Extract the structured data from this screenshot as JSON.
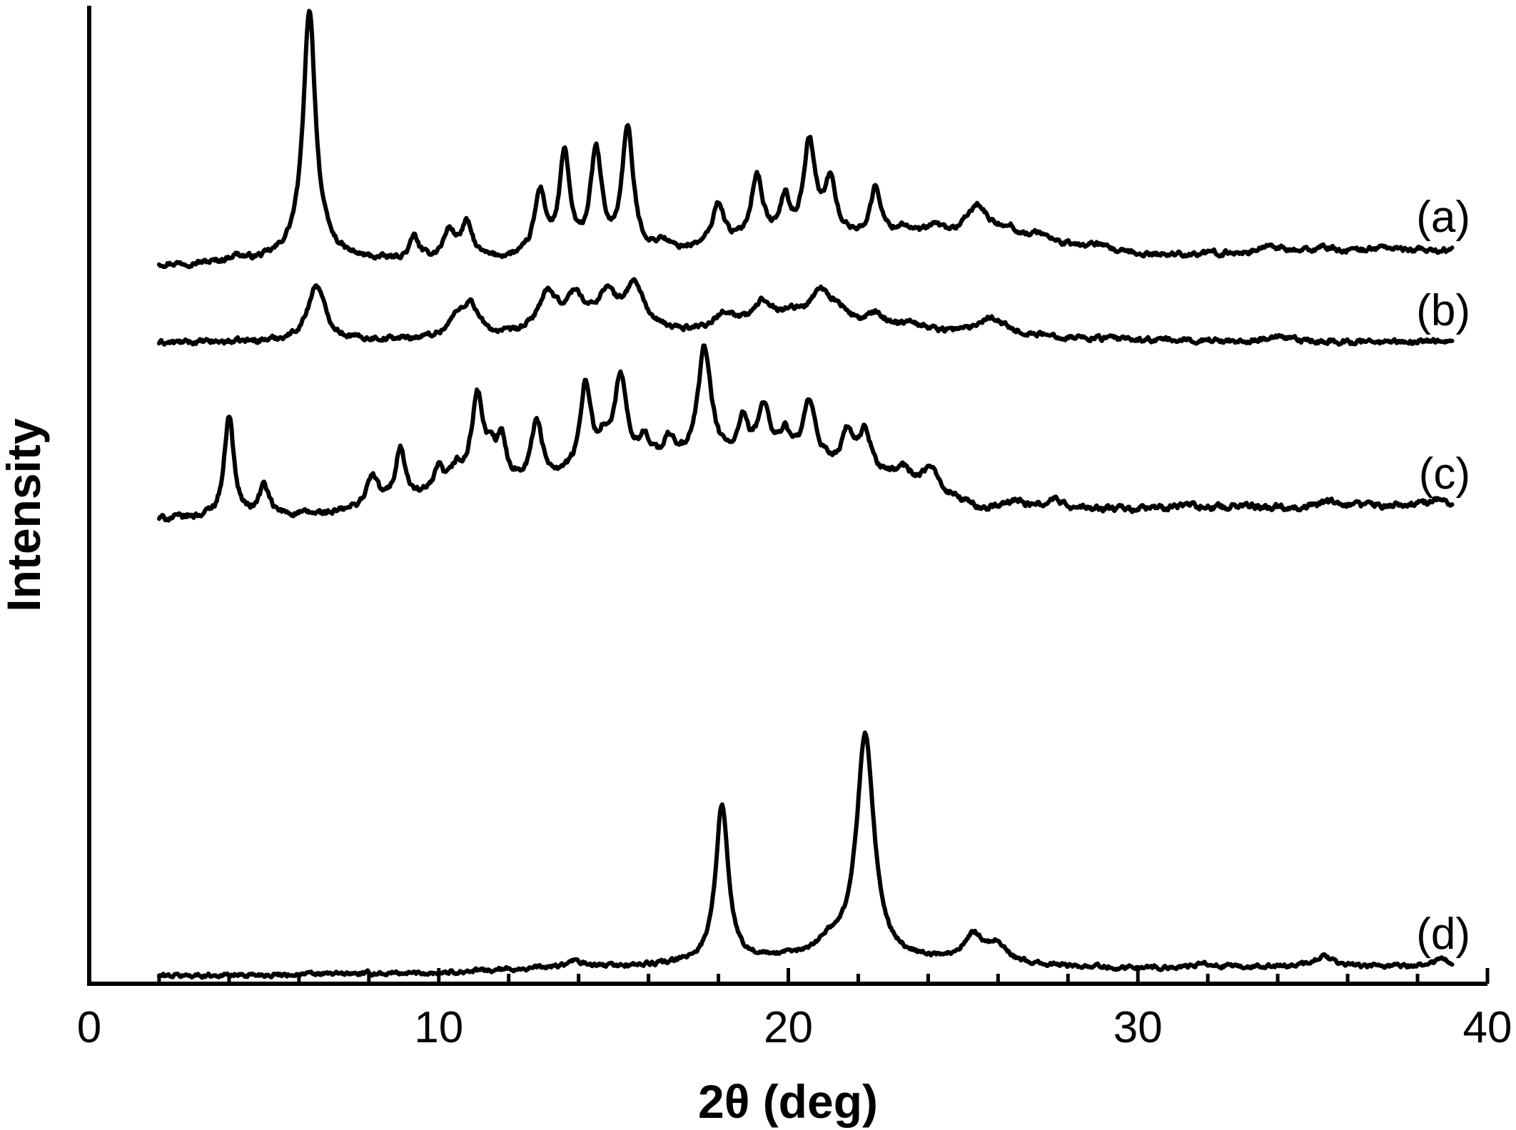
{
  "chart_data": {
    "type": "line",
    "title": "",
    "xlabel": "2θ (deg)",
    "ylabel": "Intensity",
    "xlim": [
      0,
      40
    ],
    "xticks": [
      0,
      10,
      20,
      30,
      40
    ],
    "xtick_labels": [
      "0",
      "10",
      "20",
      "30",
      "40"
    ],
    "xminor_step": 2,
    "ylim": [
      0,
      100
    ],
    "y_tick_labels_shown": false,
    "grid": false,
    "line_color": "#000000",
    "series": [
      {
        "name": "(a)",
        "x_range": [
          2,
          39
        ],
        "baseline": 73.5,
        "noise": 0.5,
        "drift": [
          [
            2,
            0
          ],
          [
            15,
            0.5
          ],
          [
            20,
            2.5
          ],
          [
            26,
            2.8
          ],
          [
            30,
            1
          ],
          [
            39,
            1.5
          ]
        ],
        "peaks": [
          [
            4.2,
            0.6,
            0.25
          ],
          [
            6.3,
            23.5,
            0.2
          ],
          [
            6.3,
            2.5,
            0.6
          ],
          [
            9.3,
            2.3,
            0.15
          ],
          [
            10.3,
            2.8,
            0.2
          ],
          [
            10.8,
            3.5,
            0.2
          ],
          [
            12.9,
            6.5,
            0.2
          ],
          [
            13.6,
            10.2,
            0.18
          ],
          [
            14.5,
            10.5,
            0.2
          ],
          [
            15.4,
            12.8,
            0.2
          ],
          [
            16.4,
            1.0,
            0.2
          ],
          [
            18.0,
            4.3,
            0.2
          ],
          [
            19.1,
            6.7,
            0.2
          ],
          [
            19.9,
            3.8,
            0.15
          ],
          [
            20.6,
            9.7,
            0.2
          ],
          [
            21.2,
            5.5,
            0.2
          ],
          [
            22.5,
            5.0,
            0.18
          ],
          [
            23.3,
            1.0,
            0.25
          ],
          [
            24.2,
            1.0,
            0.3
          ],
          [
            25.4,
            3.2,
            0.35
          ],
          [
            26.3,
            1.0,
            0.25
          ],
          [
            27.2,
            0.8,
            0.3
          ],
          [
            28.8,
            0.5,
            0.3
          ],
          [
            33.8,
            0.8,
            0.3
          ],
          [
            35.3,
            0.5,
            0.3
          ],
          [
            37,
            0.4,
            0.4
          ]
        ]
      },
      {
        "name": "(b)",
        "x_range": [
          2,
          39
        ],
        "baseline": 65.5,
        "noise": 0.5,
        "drift": [
          [
            2,
            0
          ],
          [
            15,
            0.5
          ],
          [
            20,
            1.6
          ],
          [
            26,
            0.8
          ],
          [
            30,
            0.3
          ],
          [
            39,
            0
          ]
        ],
        "peaks": [
          [
            6.5,
            5.7,
            0.3
          ],
          [
            10.5,
            1.5,
            0.3
          ],
          [
            10.9,
            3.2,
            0.3
          ],
          [
            13.1,
            4.0,
            0.35
          ],
          [
            13.9,
            3.6,
            0.35
          ],
          [
            14.8,
            3.8,
            0.35
          ],
          [
            15.6,
            4.8,
            0.35
          ],
          [
            18.2,
            1.6,
            0.35
          ],
          [
            19.3,
            2.5,
            0.35
          ],
          [
            20.1,
            1.0,
            0.3
          ],
          [
            20.9,
            3.3,
            0.35
          ],
          [
            21.4,
            1.5,
            0.35
          ],
          [
            22.5,
            1.3,
            0.35
          ],
          [
            23.5,
            0.8,
            0.4
          ],
          [
            25.8,
            1.8,
            0.45
          ],
          [
            34,
            0.4,
            0.4
          ],
          [
            38.3,
            0.3,
            0.3
          ]
        ]
      },
      {
        "name": "(c)",
        "x_range": [
          2,
          39
        ],
        "baseline": 47.5,
        "noise": 0.6,
        "drift": [
          [
            2,
            0
          ],
          [
            7,
            0.5
          ],
          [
            11,
            3
          ],
          [
            15,
            5
          ],
          [
            19,
            6
          ],
          [
            22,
            5
          ],
          [
            24,
            3
          ],
          [
            25.5,
            1
          ],
          [
            30,
            1
          ],
          [
            39,
            1.5
          ]
        ],
        "peaks": [
          [
            4.0,
            10.5,
            0.16
          ],
          [
            5.0,
            3.0,
            0.16
          ],
          [
            8.1,
            3.0,
            0.2
          ],
          [
            8.9,
            5.5,
            0.16
          ],
          [
            10.0,
            2.3,
            0.15
          ],
          [
            10.5,
            2.0,
            0.2
          ],
          [
            11.1,
            9.0,
            0.2
          ],
          [
            11.5,
            2.5,
            0.2
          ],
          [
            11.8,
            3.8,
            0.15
          ],
          [
            12.8,
            6.0,
            0.17
          ],
          [
            14.2,
            9.0,
            0.17
          ],
          [
            14.7,
            2.5,
            0.2
          ],
          [
            15.2,
            9.0,
            0.2
          ],
          [
            15.9,
            2.5,
            0.2
          ],
          [
            16.6,
            2.2,
            0.2
          ],
          [
            17.6,
            11.5,
            0.23
          ],
          [
            18.7,
            3.5,
            0.17
          ],
          [
            19.3,
            5.3,
            0.2
          ],
          [
            19.9,
            2.5,
            0.2
          ],
          [
            20.6,
            6.0,
            0.22
          ],
          [
            21.7,
            3.4,
            0.2
          ],
          [
            22.2,
            3.7,
            0.2
          ],
          [
            23.3,
            1.3,
            0.25
          ],
          [
            24.1,
            2.0,
            0.3
          ],
          [
            26.5,
            1.0,
            0.25
          ],
          [
            27.6,
            1.0,
            0.25
          ],
          [
            31.5,
            0.4,
            0.3
          ],
          [
            33,
            0.3,
            0.3
          ],
          [
            35.5,
            0.4,
            0.3
          ],
          [
            38.5,
            0.6,
            0.25
          ]
        ]
      },
      {
        "name": "(d)",
        "x_range": [
          2,
          39
        ],
        "baseline": 0.8,
        "noise": 0.4,
        "drift": [
          [
            2,
            0
          ],
          [
            10,
            0.3
          ],
          [
            13,
            0.8
          ],
          [
            16,
            1.0
          ],
          [
            20,
            1.6
          ],
          [
            24,
            1.4
          ],
          [
            27,
            1.0
          ],
          [
            30,
            0.8
          ],
          [
            39,
            1.0
          ]
        ],
        "peaks": [
          [
            13.9,
            0.6,
            0.25
          ],
          [
            18.1,
            16.0,
            0.22
          ],
          [
            21.2,
            1.5,
            0.5
          ],
          [
            22.2,
            23.0,
            0.3
          ],
          [
            25.3,
            2.8,
            0.35
          ],
          [
            26.0,
            1.8,
            0.3
          ],
          [
            31.8,
            0.3,
            0.3
          ],
          [
            35.3,
            1.1,
            0.3
          ],
          [
            38.7,
            0.7,
            0.25
          ]
        ]
      }
    ]
  }
}
